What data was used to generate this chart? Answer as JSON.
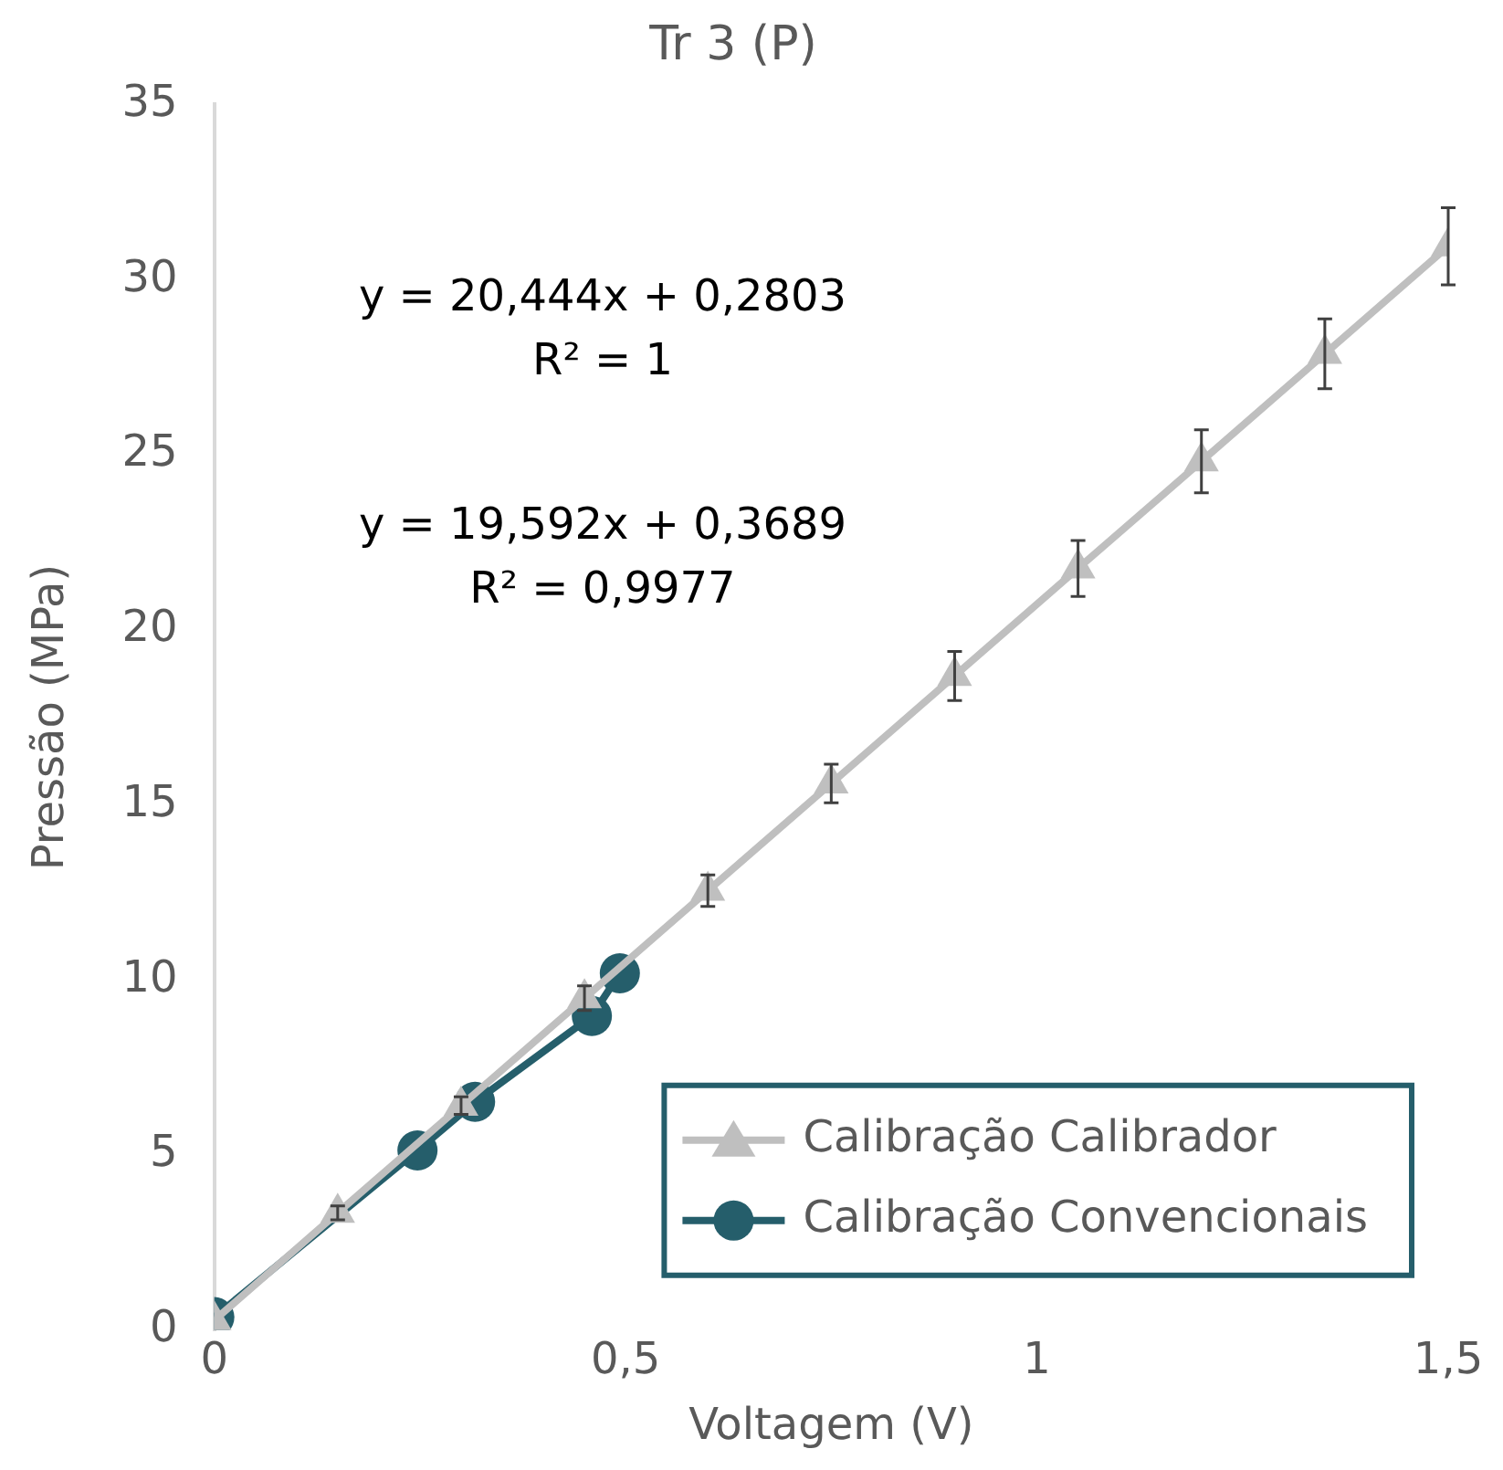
{
  "chart_data": {
    "type": "line",
    "title": "Tr 3 (P)",
    "xlabel": "Voltagem (V)",
    "ylabel": "Pressão (MPa)",
    "xlim": [
      0,
      1.5
    ],
    "xticks": [
      0,
      {
        "value": 0.5,
        "label": "0,5"
      },
      1,
      {
        "value": 1.5,
        "label": "1,5"
      }
    ],
    "ylim": [
      0,
      35
    ],
    "yticks": [
      0,
      5,
      10,
      15,
      20,
      25,
      30,
      35
    ],
    "grid": false,
    "legend": "bottom right",
    "line_style": "solid",
    "series": [
      {
        "name": "Calibração Calibrador",
        "color": "#bfbfbf",
        "marker": "triangle",
        "x": [
          0,
          0.15,
          0.3,
          0.45,
          0.6,
          0.75,
          0.9,
          1.05,
          1.2,
          1.35,
          1.5
        ],
        "values": [
          0.28,
          3.35,
          6.41,
          9.48,
          12.55,
          15.61,
          18.68,
          21.75,
          24.81,
          27.88,
          30.95
        ],
        "errors": [
          null,
          0.2,
          0.25,
          0.35,
          0.45,
          0.55,
          0.7,
          0.8,
          0.9,
          1.0,
          1.1
        ]
      },
      {
        "name": "Calibração Convencionais",
        "color": "#255e6b",
        "marker": "circle",
        "x": [
          0,
          0.247,
          0.317,
          0.459,
          0.493
        ],
        "values": [
          0.37,
          5.13,
          6.52,
          8.97,
          10.19
        ]
      }
    ],
    "annotations": [
      "y = 20,444x + 0,2803",
      "R² = 1",
      "y = 19,592x + 0,3689",
      "R² = 0,9977"
    ]
  }
}
